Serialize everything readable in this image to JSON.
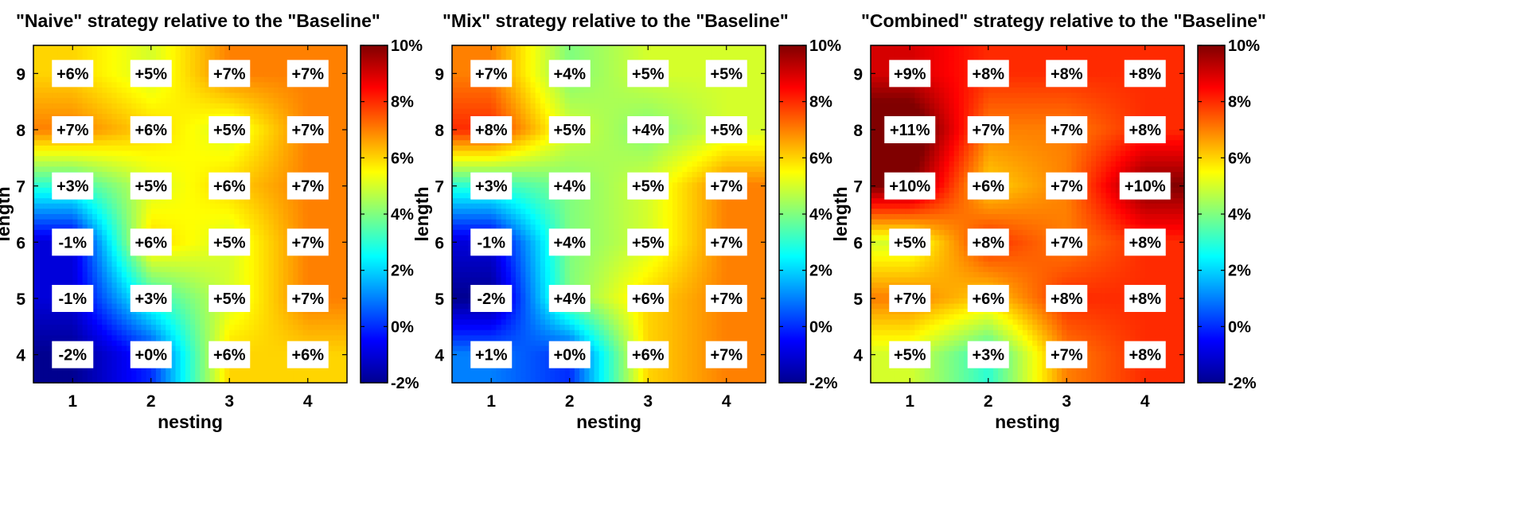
{
  "chart_data": [
    {
      "type": "heatmap",
      "title": "\"Naive\" strategy relative to the \"Baseline\"",
      "xlabel": "nesting",
      "ylabel": "length",
      "x": [
        1,
        2,
        3,
        4
      ],
      "y": [
        4,
        5,
        6,
        7,
        8,
        9
      ],
      "values": [
        [
          -2,
          0,
          6,
          6
        ],
        [
          -1,
          3,
          5,
          7
        ],
        [
          -1,
          6,
          5,
          7
        ],
        [
          3,
          5,
          6,
          7
        ],
        [
          7,
          6,
          5,
          7
        ],
        [
          6,
          5,
          7,
          7
        ]
      ],
      "labels": [
        [
          "-2%",
          "+0%",
          "+6%",
          "+6%"
        ],
        [
          "-1%",
          "+3%",
          "+5%",
          "+7%"
        ],
        [
          "-1%",
          "+6%",
          "+5%",
          "+7%"
        ],
        [
          "+3%",
          "+5%",
          "+6%",
          "+7%"
        ],
        [
          "+7%",
          "+6%",
          "+5%",
          "+7%"
        ],
        [
          "+6%",
          "+5%",
          "+7%",
          "+7%"
        ]
      ],
      "colorbar": {
        "min": -2,
        "max": 10,
        "ticks": [
          "-2%",
          "0%",
          "2%",
          "4%",
          "6%",
          "8%",
          "10%"
        ]
      }
    },
    {
      "type": "heatmap",
      "title": "\"Mix\" strategy relative to the \"Baseline\"",
      "xlabel": "nesting",
      "ylabel": "length",
      "x": [
        1,
        2,
        3,
        4
      ],
      "y": [
        4,
        5,
        6,
        7,
        8,
        9
      ],
      "values": [
        [
          1,
          0,
          6,
          7
        ],
        [
          -2,
          4,
          6,
          7
        ],
        [
          -1,
          4,
          5,
          7
        ],
        [
          3,
          4,
          5,
          7
        ],
        [
          8,
          5,
          4,
          5
        ],
        [
          7,
          4,
          5,
          5
        ]
      ],
      "labels": [
        [
          "+1%",
          "+0%",
          "+6%",
          "+7%"
        ],
        [
          "-2%",
          "+4%",
          "+6%",
          "+7%"
        ],
        [
          "-1%",
          "+4%",
          "+5%",
          "+7%"
        ],
        [
          "+3%",
          "+4%",
          "+5%",
          "+7%"
        ],
        [
          "+8%",
          "+5%",
          "+4%",
          "+5%"
        ],
        [
          "+7%",
          "+4%",
          "+5%",
          "+5%"
        ]
      ],
      "colorbar": {
        "min": -2,
        "max": 10,
        "ticks": [
          "-2%",
          "0%",
          "2%",
          "4%",
          "6%",
          "8%",
          "10%"
        ]
      }
    },
    {
      "type": "heatmap",
      "title": "\"Combined\" strategy relative to the \"Baseline\"",
      "xlabel": "nesting",
      "ylabel": "length",
      "x": [
        1,
        2,
        3,
        4
      ],
      "y": [
        4,
        5,
        6,
        7,
        8,
        9
      ],
      "values": [
        [
          5,
          3,
          7,
          8
        ],
        [
          7,
          6,
          8,
          8
        ],
        [
          5,
          8,
          7,
          8
        ],
        [
          10,
          6,
          7,
          10
        ],
        [
          11,
          7,
          7,
          8
        ],
        [
          9,
          8,
          8,
          8
        ]
      ],
      "labels": [
        [
          "+5%",
          "+3%",
          "+7%",
          "+8%"
        ],
        [
          "+7%",
          "+6%",
          "+8%",
          "+8%"
        ],
        [
          "+5%",
          "+8%",
          "+7%",
          "+8%"
        ],
        [
          "+10%",
          "+6%",
          "+7%",
          "+10%"
        ],
        [
          "+11%",
          "+7%",
          "+7%",
          "+8%"
        ],
        [
          "+9%",
          "+8%",
          "+8%",
          "+8%"
        ]
      ],
      "colorbar": {
        "min": -2,
        "max": 10,
        "ticks": [
          "-2%",
          "0%",
          "2%",
          "4%",
          "6%",
          "8%",
          "10%"
        ]
      }
    }
  ]
}
